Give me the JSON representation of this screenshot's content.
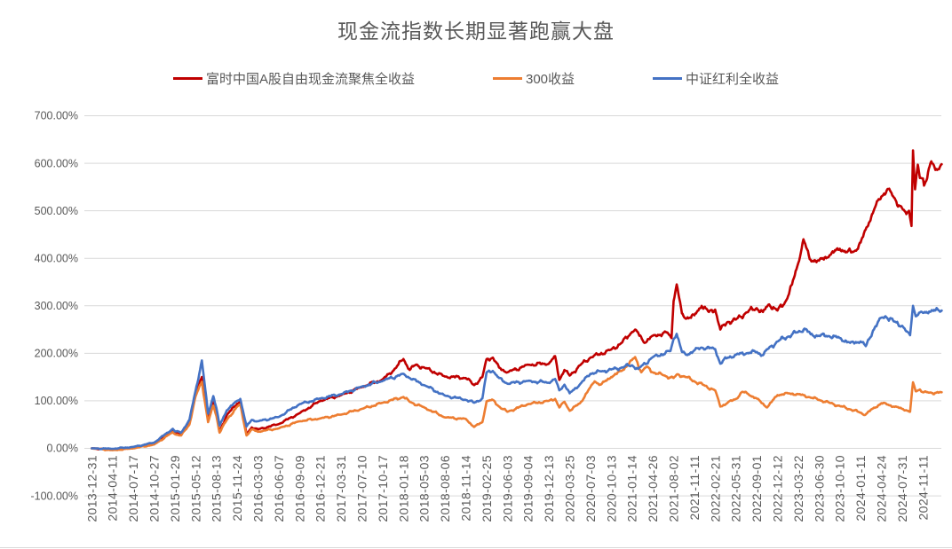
{
  "chart_data": {
    "type": "line",
    "title": "现金流指数长期显著跑赢大盘",
    "legend_position": "top",
    "grid": "horizontal",
    "style": {
      "background": "#FFFFFF",
      "grid_color": "#D9D9D9",
      "text_color": "#595959",
      "border_color": "#D9D9D9"
    },
    "y_axis": {
      "min": -100,
      "max": 700,
      "step": 100,
      "format": "percent-2dp",
      "tick_labels": [
        "700.00%",
        "600.00%",
        "500.00%",
        "400.00%",
        "300.00%",
        "200.00%",
        "100.00%",
        "0.00%",
        "-100.00%"
      ]
    },
    "x_axis": {
      "label_rotation": -90,
      "note": "values are cumulative return in percent at each category date"
    },
    "categories": [
      "2013-12-31",
      "2014-04-11",
      "2014-07-17",
      "2014-10-27",
      "2015-01-29",
      "2015-05-12",
      "2015-08-13",
      "2015-11-24",
      "2016-03-03",
      "2016-06-07",
      "2016-09-09",
      "2016-12-21",
      "2017-03-31",
      "2017-07-10",
      "2017-10-17",
      "2018-01-18",
      "2018-05-03",
      "2018-08-06",
      "2018-11-14",
      "2019-02-25",
      "2019-06-03",
      "2019-09-04",
      "2019-12-13",
      "2020-03-25",
      "2020-07-03",
      "2020-10-13",
      "2021-01-14",
      "2021-04-26",
      "2021-08-02",
      "2021-11-11",
      "2022-02-21",
      "2022-05-31",
      "2022-09-01",
      "2022-12-12",
      "2023-03-22",
      "2023-06-30",
      "2023-10-10",
      "2024-01-11",
      "2024-04-24",
      "2024-07-31",
      "2024-11-11"
    ],
    "series": [
      {
        "name": "富时中国A股自由现金流聚焦全收益",
        "color": "#C00000",
        "values": [
          0,
          -3,
          2,
          10,
          33,
          116,
          75,
          94,
          40,
          51,
          74,
          100,
          112,
          129,
          145,
          188,
          170,
          151,
          148,
          188,
          160,
          176,
          178,
          153,
          191,
          208,
          245,
          237,
          310,
          280,
          292,
          271,
          295,
          290,
          390,
          395,
          420,
          433,
          530,
          505,
          568
        ],
        "detail_points": [
          [
            3.9,
            38
          ],
          [
            4.3,
            30
          ],
          [
            4.7,
            55
          ],
          [
            5.3,
            150
          ],
          [
            5.6,
            60
          ],
          [
            5.85,
            97
          ],
          [
            6.15,
            35
          ],
          [
            6.5,
            70
          ],
          [
            7.15,
            98
          ],
          [
            7.45,
            30
          ],
          [
            7.7,
            44
          ],
          [
            14.5,
            163
          ],
          [
            15.3,
            165
          ],
          [
            15.6,
            176
          ],
          [
            18.4,
            133
          ],
          [
            18.8,
            150
          ],
          [
            19.3,
            191
          ],
          [
            19.6,
            170
          ],
          [
            22.3,
            194
          ],
          [
            22.5,
            144
          ],
          [
            22.75,
            165
          ],
          [
            23.5,
            175
          ],
          [
            25.5,
            222
          ],
          [
            26.15,
            250
          ],
          [
            26.6,
            222
          ],
          [
            27.7,
            244
          ],
          [
            27.9,
            232
          ],
          [
            28.15,
            345
          ],
          [
            28.4,
            284
          ],
          [
            28.55,
            274
          ],
          [
            29.35,
            300
          ],
          [
            29.7,
            287
          ],
          [
            30.25,
            250
          ],
          [
            30.6,
            266
          ],
          [
            31.5,
            286
          ],
          [
            32.3,
            287
          ],
          [
            32.6,
            303
          ],
          [
            33.4,
            310
          ],
          [
            33.7,
            345
          ],
          [
            34.25,
            440
          ],
          [
            34.55,
            398
          ],
          [
            35.5,
            406
          ],
          [
            36.35,
            413
          ],
          [
            36.7,
            415
          ],
          [
            37.4,
            475
          ],
          [
            37.7,
            508
          ],
          [
            38.3,
            546
          ],
          [
            38.6,
            528
          ],
          [
            39.2,
            493
          ],
          [
            39.33,
            500
          ],
          [
            39.45,
            468
          ],
          [
            39.52,
            627
          ],
          [
            39.62,
            545
          ],
          [
            39.75,
            597
          ],
          [
            39.85,
            569
          ],
          [
            40.05,
            553
          ],
          [
            40.4,
            604
          ],
          [
            40.6,
            586
          ],
          [
            40.9,
            598
          ]
        ]
      },
      {
        "name": "300收益",
        "color": "#ED7D31",
        "values": [
          0,
          -4,
          0,
          8,
          30,
          110,
          68,
          88,
          35,
          42,
          57,
          63,
          71,
          83,
          96,
          108,
          86,
          65,
          62,
          99,
          77,
          93,
          100,
          79,
          129,
          150,
          186,
          160,
          148,
          141,
          122,
          104,
          105,
          112,
          114,
          102,
          89,
          75,
          95,
          83,
          118
        ],
        "detail_points": [
          [
            3.9,
            34
          ],
          [
            4.3,
            27
          ],
          [
            4.7,
            50
          ],
          [
            5.3,
            140
          ],
          [
            5.6,
            55
          ],
          [
            5.85,
            90
          ],
          [
            6.15,
            33
          ],
          [
            6.5,
            60
          ],
          [
            7.15,
            92
          ],
          [
            7.45,
            27
          ],
          [
            7.7,
            40
          ],
          [
            15.3,
            98
          ],
          [
            18.4,
            45
          ],
          [
            18.8,
            55
          ],
          [
            19.3,
            102
          ],
          [
            19.6,
            88
          ],
          [
            22.3,
            104
          ],
          [
            22.5,
            86
          ],
          [
            22.75,
            98
          ],
          [
            23.5,
            95
          ],
          [
            24.2,
            141
          ],
          [
            24.5,
            134
          ],
          [
            25.5,
            163
          ],
          [
            26.15,
            192
          ],
          [
            26.45,
            160
          ],
          [
            26.7,
            172
          ],
          [
            27.5,
            154
          ],
          [
            28.2,
            156
          ],
          [
            28.6,
            150
          ],
          [
            29.5,
            132
          ],
          [
            30.25,
            88
          ],
          [
            30.6,
            96
          ],
          [
            31.3,
            119
          ],
          [
            31.6,
            114
          ],
          [
            32.5,
            86
          ],
          [
            33.5,
            116
          ],
          [
            34.5,
            108
          ],
          [
            35.5,
            96
          ],
          [
            36.5,
            82
          ],
          [
            37.2,
            70
          ],
          [
            37.6,
            84
          ],
          [
            38.3,
            92
          ],
          [
            38.6,
            88
          ],
          [
            39.2,
            80
          ],
          [
            39.38,
            77
          ],
          [
            39.52,
            139
          ],
          [
            39.65,
            120
          ],
          [
            39.85,
            124
          ],
          [
            40.3,
            117
          ],
          [
            40.9,
            118
          ]
        ]
      },
      {
        "name": "中证红利全收益",
        "color": "#4472C4",
        "values": [
          0,
          -1,
          3,
          12,
          36,
          122,
          85,
          100,
          57,
          66,
          93,
          105,
          114,
          130,
          142,
          157,
          133,
          111,
          102,
          160,
          136,
          142,
          138,
          116,
          157,
          166,
          175,
          192,
          230,
          206,
          209,
          197,
          203,
          225,
          245,
          237,
          232,
          225,
          275,
          258,
          285
        ],
        "detail_points": [
          [
            3.9,
            41
          ],
          [
            4.3,
            33
          ],
          [
            4.7,
            60
          ],
          [
            5.3,
            185
          ],
          [
            5.6,
            73
          ],
          [
            5.85,
            110
          ],
          [
            6.15,
            48
          ],
          [
            6.5,
            80
          ],
          [
            7.15,
            104
          ],
          [
            7.45,
            46
          ],
          [
            7.7,
            60
          ],
          [
            15.3,
            148
          ],
          [
            18.4,
            96
          ],
          [
            18.8,
            105
          ],
          [
            19.3,
            163
          ],
          [
            19.6,
            148
          ],
          [
            22.3,
            146
          ],
          [
            22.5,
            122
          ],
          [
            22.75,
            134
          ],
          [
            23.5,
            135
          ],
          [
            24.5,
            162
          ],
          [
            25.5,
            170
          ],
          [
            26.3,
            167
          ],
          [
            27.85,
            205
          ],
          [
            28.15,
            241
          ],
          [
            28.4,
            203
          ],
          [
            28.6,
            197
          ],
          [
            29.35,
            212
          ],
          [
            30.25,
            178
          ],
          [
            30.6,
            191
          ],
          [
            31.5,
            200
          ],
          [
            32.3,
            196
          ],
          [
            32.6,
            212
          ],
          [
            33.5,
            235
          ],
          [
            34.3,
            252
          ],
          [
            34.6,
            240
          ],
          [
            35.5,
            236
          ],
          [
            36.5,
            222
          ],
          [
            37.25,
            215
          ],
          [
            37.6,
            248
          ],
          [
            38.2,
            278
          ],
          [
            38.6,
            267
          ],
          [
            39.2,
            246
          ],
          [
            39.38,
            238
          ],
          [
            39.52,
            300
          ],
          [
            39.65,
            278
          ],
          [
            39.85,
            286
          ],
          [
            40.3,
            288
          ],
          [
            40.9,
            290
          ]
        ]
      }
    ]
  }
}
